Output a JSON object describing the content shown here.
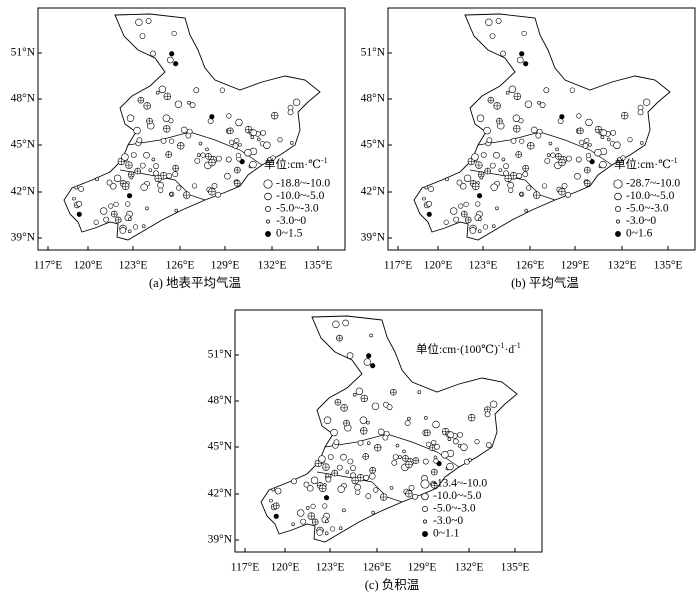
{
  "panels": [
    {
      "caption": "(a) 地表平均气温",
      "legend_title": [
        "单位:cm·℃",
        "-1"
      ],
      "legend_items": [
        "-18.8~-10.0",
        "-10.0~-5.0",
        "-5.0~-3.0",
        "-3.0~0",
        "0~1.5"
      ],
      "x_labels": [
        "117°E",
        "120°E",
        "123°E",
        "126°E",
        "129°E",
        "132°E",
        "135°E"
      ],
      "y_labels": [
        "51°N",
        "48°N",
        "45°N",
        "42°N",
        "39°N"
      ]
    },
    {
      "caption": "(b) 平均气温",
      "legend_title": [
        "单位:cm·℃",
        "-1"
      ],
      "legend_items": [
        "-28.7~-10.0",
        "-10.0~-5.0",
        "-5.0~-3.0",
        "-3.0~0",
        "0~1.6"
      ],
      "x_labels": [
        "117°E",
        "120°E",
        "123°E",
        "126°E",
        "129°E",
        "132°E",
        "135°E"
      ],
      "y_labels": [
        "51°N",
        "48°N",
        "45°N",
        "42°N",
        "39°N"
      ]
    },
    {
      "caption": "(c) 负积温",
      "legend_title": [
        "单位:cm·(100℃)",
        "-1",
        "·d",
        "-1"
      ],
      "legend_items": [
        "-13.4~-10.0",
        "-10.0~-5.0",
        "-5.0~-3.0",
        "-3.0~0",
        "0~1.1"
      ],
      "x_labels": [
        "117°E",
        "120°E",
        "123°E",
        "126°E",
        "129°E",
        "132°E",
        "135°E"
      ],
      "y_labels": [
        "51°N",
        "48°N",
        "45°N",
        "42°N",
        "39°N"
      ]
    }
  ]
}
